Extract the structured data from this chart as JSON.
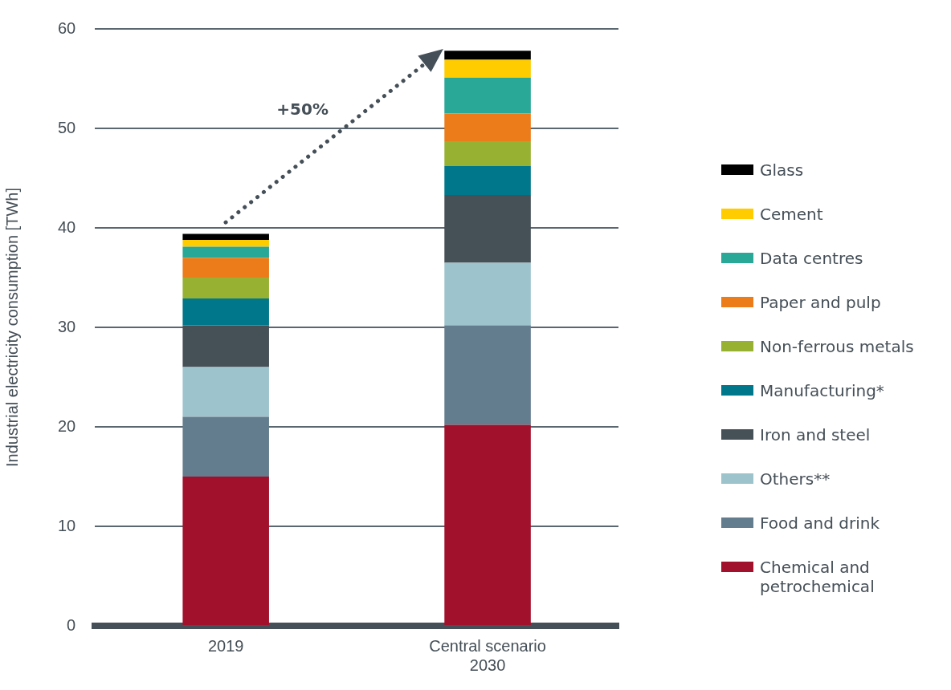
{
  "chart_data": {
    "type": "bar",
    "stacked": true,
    "ylabel": "Industrial electricity consumption [TWh]",
    "categories": [
      "2019",
      "Central scenario\n2030"
    ],
    "ylim": [
      0,
      60
    ],
    "yticks": [
      0,
      10,
      20,
      30,
      40,
      50,
      60
    ],
    "grid": "y",
    "legend": "right",
    "annotations": [
      "+50%"
    ],
    "series": [
      {
        "name": "Chemical and petrochemical",
        "color": "#a2112c",
        "values": [
          15.0,
          20.2
        ]
      },
      {
        "name": "Food and drink",
        "color": "#647d8e",
        "values": [
          6.0,
          10.0
        ]
      },
      {
        "name": "Others**",
        "color": "#9dc3cc",
        "values": [
          5.0,
          6.3
        ]
      },
      {
        "name": "Iron and steel",
        "color": "#465057",
        "values": [
          4.2,
          6.8
        ]
      },
      {
        "name": "Manufacturing*",
        "color": "#00778a",
        "values": [
          2.7,
          2.9
        ]
      },
      {
        "name": "Non-ferrous metals",
        "color": "#97b232",
        "values": [
          2.1,
          2.5
        ]
      },
      {
        "name": "Paper and pulp",
        "color": "#ec7c1a",
        "values": [
          2.0,
          2.8
        ]
      },
      {
        "name": "Data centres",
        "color": "#29a898",
        "values": [
          1.1,
          3.6
        ]
      },
      {
        "name": "Cement",
        "color": "#ffcc00",
        "values": [
          0.7,
          1.8
        ]
      },
      {
        "name": "Glass",
        "color": "#000000",
        "values": [
          0.6,
          0.9
        ]
      }
    ]
  }
}
